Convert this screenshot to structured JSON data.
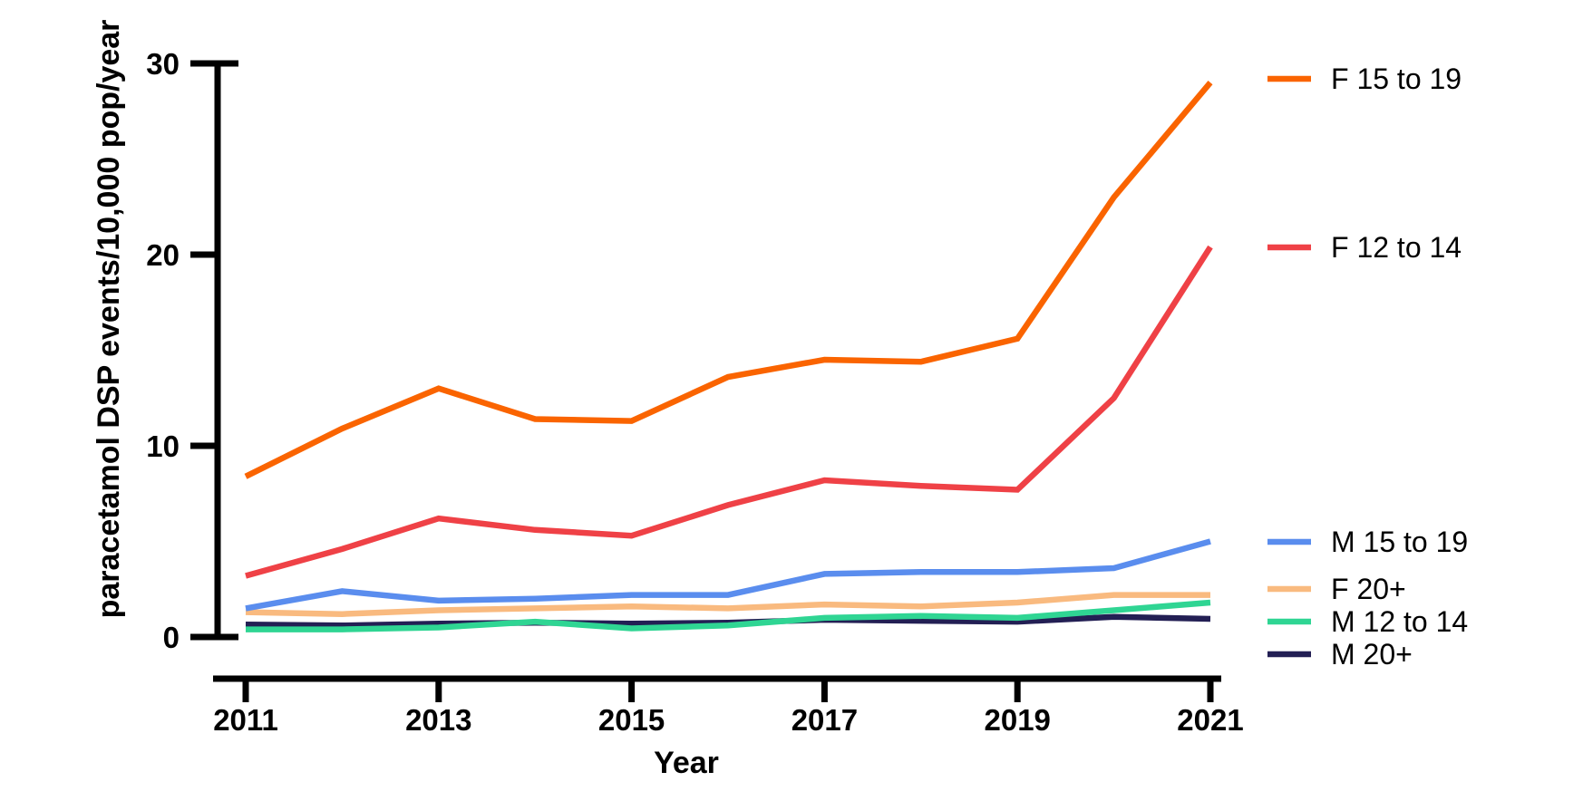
{
  "chart_data": {
    "type": "line",
    "title": "",
    "xlabel": "Year",
    "ylabel": "paracetamol DSP events/10,000 pop/year",
    "x": [
      2011,
      2012,
      2013,
      2014,
      2015,
      2016,
      2017,
      2018,
      2019,
      2020,
      2021
    ],
    "x_tick_labels": [
      "2011",
      "2013",
      "2015",
      "2017",
      "2019",
      "2021"
    ],
    "x_ticks": [
      2011,
      2013,
      2015,
      2017,
      2019,
      2021
    ],
    "y_ticks": [
      0,
      10,
      20,
      30
    ],
    "y_tick_labels": [
      "0",
      "10",
      "20",
      "30"
    ],
    "xlim": [
      2011,
      2021
    ],
    "ylim": [
      0,
      30
    ],
    "grid": false,
    "legend_position": "right-outside",
    "axis_color": "#000000",
    "series": [
      {
        "name": "F 15 to 19",
        "color": "#FA6400",
        "values": [
          8.4,
          10.9,
          13.0,
          11.4,
          11.3,
          13.6,
          14.5,
          14.4,
          15.6,
          23.0,
          29.0
        ]
      },
      {
        "name": "F 12 to 14",
        "color": "#EF4146",
        "values": [
          3.2,
          4.6,
          6.2,
          5.6,
          5.3,
          6.9,
          8.2,
          7.9,
          7.7,
          12.5,
          20.4
        ]
      },
      {
        "name": "M 15 to 19",
        "color": "#5A8DEE",
        "values": [
          1.5,
          2.4,
          1.9,
          2.0,
          2.2,
          2.2,
          3.3,
          3.4,
          3.4,
          3.6,
          5.0
        ]
      },
      {
        "name": "F 20+",
        "color": "#F9BA7F",
        "values": [
          1.3,
          1.2,
          1.4,
          1.5,
          1.6,
          1.5,
          1.7,
          1.6,
          1.8,
          2.2,
          2.2
        ]
      },
      {
        "name": "M 12 to 14",
        "color": "#2FD593",
        "values": [
          0.4,
          0.4,
          0.5,
          0.8,
          0.45,
          0.6,
          1.0,
          1.1,
          1.0,
          1.4,
          1.8
        ]
      },
      {
        "name": "M 20+",
        "color": "#231F54",
        "values": [
          0.65,
          0.6,
          0.7,
          0.75,
          0.7,
          0.75,
          0.9,
          0.85,
          0.8,
          1.05,
          0.95
        ]
      }
    ]
  }
}
